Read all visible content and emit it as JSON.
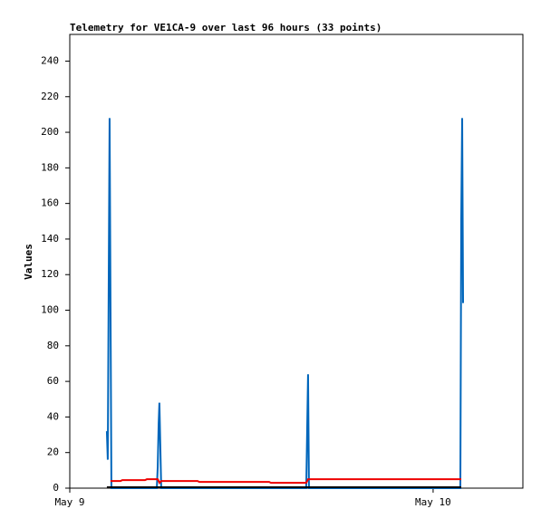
{
  "chart_data": {
    "type": "line",
    "title": "Telemetry for VE1CA-9 over last 96 hours (33 points)",
    "ylabel": "Values",
    "xlim": [
      0,
      29.93
    ],
    "xticks": [
      {
        "value": 0,
        "label": "May 9"
      },
      {
        "value": 24,
        "label": "May 10"
      }
    ],
    "ylim": [
      0,
      255
    ],
    "yticks": [
      0,
      20,
      40,
      60,
      80,
      100,
      120,
      140,
      160,
      180,
      200,
      220,
      240
    ],
    "series": [
      {
        "color": "#0066bb",
        "x": [
          2.45,
          2.51,
          2.63,
          2.69,
          2.75,
          5.75,
          5.81,
          5.87,
          5.92,
          5.98,
          6.04,
          15.62,
          15.68,
          15.74,
          15.8,
          25.8,
          25.86,
          25.92,
          25.98
        ],
        "values": [
          32,
          16,
          208,
          104,
          0,
          0,
          12,
          36,
          48,
          24,
          0,
          0,
          32,
          64,
          0,
          0,
          152,
          208,
          104
        ]
      },
      {
        "color": "#ee0000",
        "x": [
          2.69,
          3.35,
          3.47,
          4.97,
          5.09,
          5.81,
          5.93,
          6.04,
          8.44,
          8.56,
          13.17,
          13.29,
          15.62,
          15.74,
          25.86
        ],
        "values": [
          4,
          4,
          4.5,
          4.5,
          5,
          5,
          3,
          4,
          4,
          3.5,
          3.5,
          3,
          3,
          5,
          5
        ]
      },
      {
        "color": "#000000",
        "x": [
          2.45,
          25.86
        ],
        "values": [
          0.5,
          0.5
        ]
      }
    ]
  }
}
